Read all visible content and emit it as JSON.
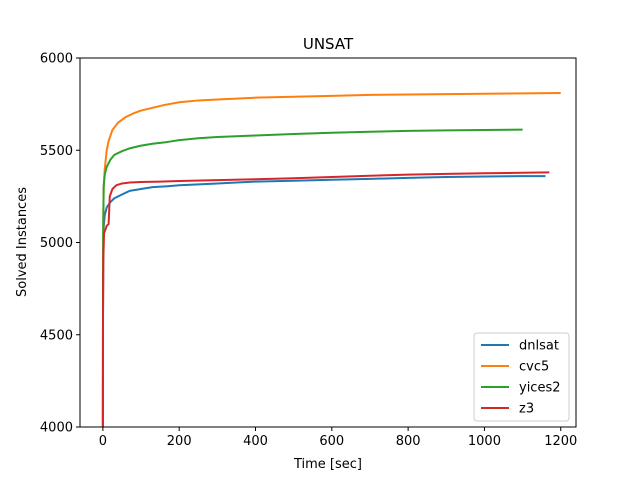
{
  "chart_data": {
    "type": "line",
    "title": "UNSAT",
    "xlabel": "Time [sec]",
    "ylabel": "Solved Instances",
    "xlim": [
      -60,
      1240
    ],
    "ylim": [
      4000,
      6000
    ],
    "xticks": [
      0,
      200,
      400,
      600,
      800,
      1000,
      1200
    ],
    "yticks": [
      4000,
      4500,
      5000,
      5500,
      6000
    ],
    "grid": false,
    "legend_position": "lower-right",
    "series": [
      {
        "name": "dnlsat",
        "color": "#1f77b4",
        "points": [
          [
            0,
            4000
          ],
          [
            0.3,
            4600
          ],
          [
            1,
            4950
          ],
          [
            2,
            5080
          ],
          [
            5,
            5150
          ],
          [
            10,
            5190
          ],
          [
            20,
            5220
          ],
          [
            30,
            5240
          ],
          [
            50,
            5260
          ],
          [
            70,
            5280
          ],
          [
            100,
            5290
          ],
          [
            130,
            5300
          ],
          [
            170,
            5305
          ],
          [
            200,
            5310
          ],
          [
            250,
            5315
          ],
          [
            300,
            5320
          ],
          [
            350,
            5325
          ],
          [
            400,
            5330
          ],
          [
            500,
            5335
          ],
          [
            600,
            5340
          ],
          [
            700,
            5345
          ],
          [
            800,
            5350
          ],
          [
            900,
            5355
          ],
          [
            1000,
            5358
          ],
          [
            1100,
            5360
          ],
          [
            1160,
            5360
          ]
        ]
      },
      {
        "name": "cvc5",
        "color": "#ff7f0e",
        "points": [
          [
            0,
            4000
          ],
          [
            0.3,
            4700
          ],
          [
            1,
            5100
          ],
          [
            2,
            5300
          ],
          [
            5,
            5400
          ],
          [
            10,
            5500
          ],
          [
            15,
            5550
          ],
          [
            25,
            5610
          ],
          [
            40,
            5650
          ],
          [
            60,
            5680
          ],
          [
            80,
            5700
          ],
          [
            100,
            5715
          ],
          [
            130,
            5730
          ],
          [
            160,
            5745
          ],
          [
            200,
            5760
          ],
          [
            250,
            5770
          ],
          [
            300,
            5775
          ],
          [
            350,
            5780
          ],
          [
            400,
            5785
          ],
          [
            500,
            5790
          ],
          [
            600,
            5795
          ],
          [
            700,
            5800
          ],
          [
            800,
            5802
          ],
          [
            900,
            5804
          ],
          [
            1000,
            5806
          ],
          [
            1100,
            5808
          ],
          [
            1200,
            5810
          ]
        ]
      },
      {
        "name": "yices2",
        "color": "#2ca02c",
        "points": [
          [
            0,
            4000
          ],
          [
            0.3,
            4700
          ],
          [
            1,
            5100
          ],
          [
            2,
            5300
          ],
          [
            5,
            5370
          ],
          [
            10,
            5410
          ],
          [
            20,
            5450
          ],
          [
            30,
            5475
          ],
          [
            50,
            5495
          ],
          [
            70,
            5510
          ],
          [
            100,
            5525
          ],
          [
            130,
            5535
          ],
          [
            170,
            5545
          ],
          [
            200,
            5555
          ],
          [
            250,
            5565
          ],
          [
            300,
            5572
          ],
          [
            400,
            5580
          ],
          [
            500,
            5588
          ],
          [
            600,
            5595
          ],
          [
            700,
            5600
          ],
          [
            800,
            5605
          ],
          [
            900,
            5608
          ],
          [
            1000,
            5610
          ],
          [
            1100,
            5612
          ]
        ]
      },
      {
        "name": "z3",
        "color": "#d62728",
        "points": [
          [
            0,
            4000
          ],
          [
            0.3,
            4600
          ],
          [
            1,
            4900
          ],
          [
            3,
            5050
          ],
          [
            10,
            5090
          ],
          [
            15,
            5100
          ],
          [
            18,
            5250
          ],
          [
            25,
            5290
          ],
          [
            35,
            5310
          ],
          [
            50,
            5320
          ],
          [
            70,
            5325
          ],
          [
            100,
            5328
          ],
          [
            150,
            5330
          ],
          [
            200,
            5333
          ],
          [
            300,
            5338
          ],
          [
            400,
            5343
          ],
          [
            500,
            5348
          ],
          [
            600,
            5355
          ],
          [
            700,
            5362
          ],
          [
            800,
            5368
          ],
          [
            900,
            5372
          ],
          [
            1000,
            5375
          ],
          [
            1100,
            5378
          ],
          [
            1170,
            5380
          ]
        ]
      }
    ]
  }
}
